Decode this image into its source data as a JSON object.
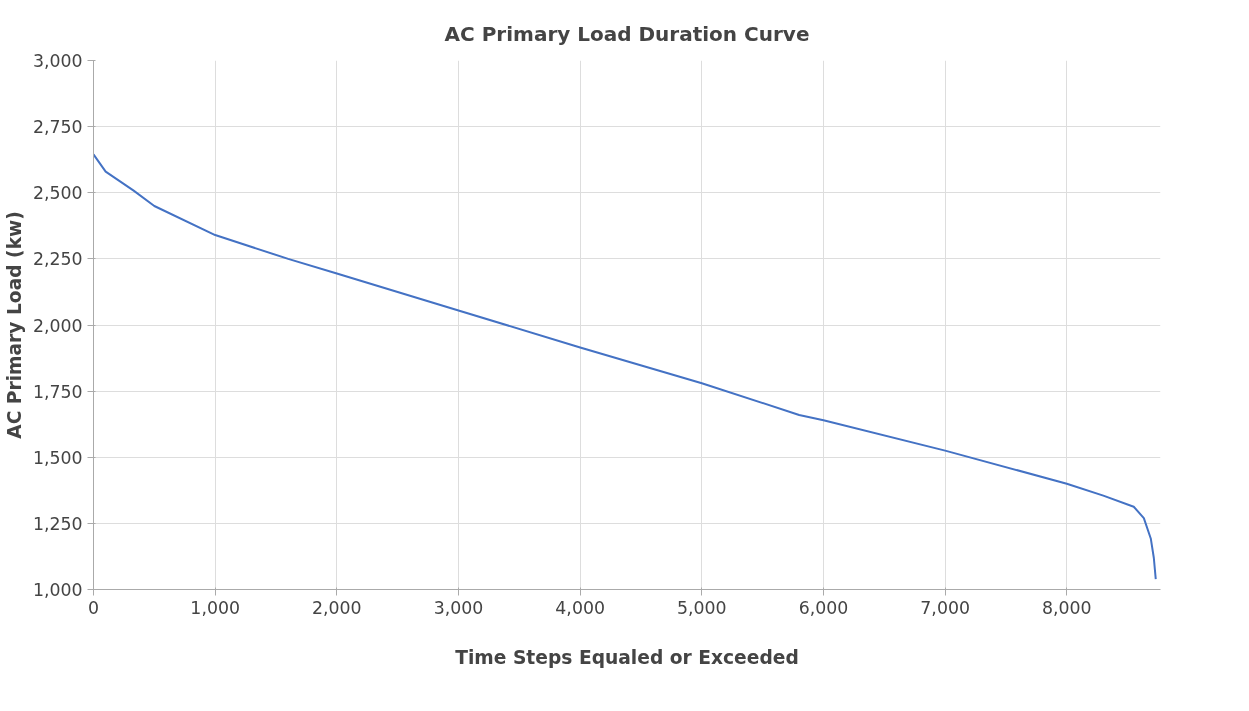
{
  "chart_data": {
    "type": "line",
    "title": "AC Primary Load Duration Curve",
    "xlabel": "Time Steps Equaled or Exceeded",
    "ylabel": "AC Primary Load (kw)",
    "x": [
      0,
      100,
      330,
      500,
      1000,
      1600,
      2000,
      3000,
      4000,
      5000,
      5800,
      6000,
      7000,
      8000,
      8300,
      8550,
      8633,
      8690,
      8715,
      8731
    ],
    "series": [
      {
        "color": "#4472c4",
        "values": [
          2645,
          2580,
          2508,
          2450,
          2340,
          2250,
          2195,
          2055,
          1915,
          1780,
          1660,
          1640,
          1525,
          1400,
          1355,
          1313,
          1270,
          1193,
          1120,
          1039
        ]
      }
    ],
    "xlim": [
      0,
      8770
    ],
    "ylim": [
      1000,
      3000
    ],
    "xticks": [
      {
        "value": 0,
        "label": "0"
      },
      {
        "value": 1000,
        "label": "1,000"
      },
      {
        "value": 2000,
        "label": "2,000"
      },
      {
        "value": 3000,
        "label": "3,000"
      },
      {
        "value": 4000,
        "label": "4,000"
      },
      {
        "value": 5000,
        "label": "5,000"
      },
      {
        "value": 6000,
        "label": "6,000"
      },
      {
        "value": 7000,
        "label": "7,000"
      },
      {
        "value": 8000,
        "label": "8,000"
      }
    ],
    "yticks": [
      {
        "value": 1000,
        "label": "1,000"
      },
      {
        "value": 1250,
        "label": "1,250"
      },
      {
        "value": 1500,
        "label": "1,500"
      },
      {
        "value": 1750,
        "label": "1,750"
      },
      {
        "value": 2000,
        "label": "2,000"
      },
      {
        "value": 2250,
        "label": "2,250"
      },
      {
        "value": 2500,
        "label": "2,500"
      },
      {
        "value": 2750,
        "label": "2,750"
      },
      {
        "value": 3000,
        "label": "3,000"
      }
    ],
    "grid": true,
    "marker": "none",
    "line_style": "solid"
  }
}
